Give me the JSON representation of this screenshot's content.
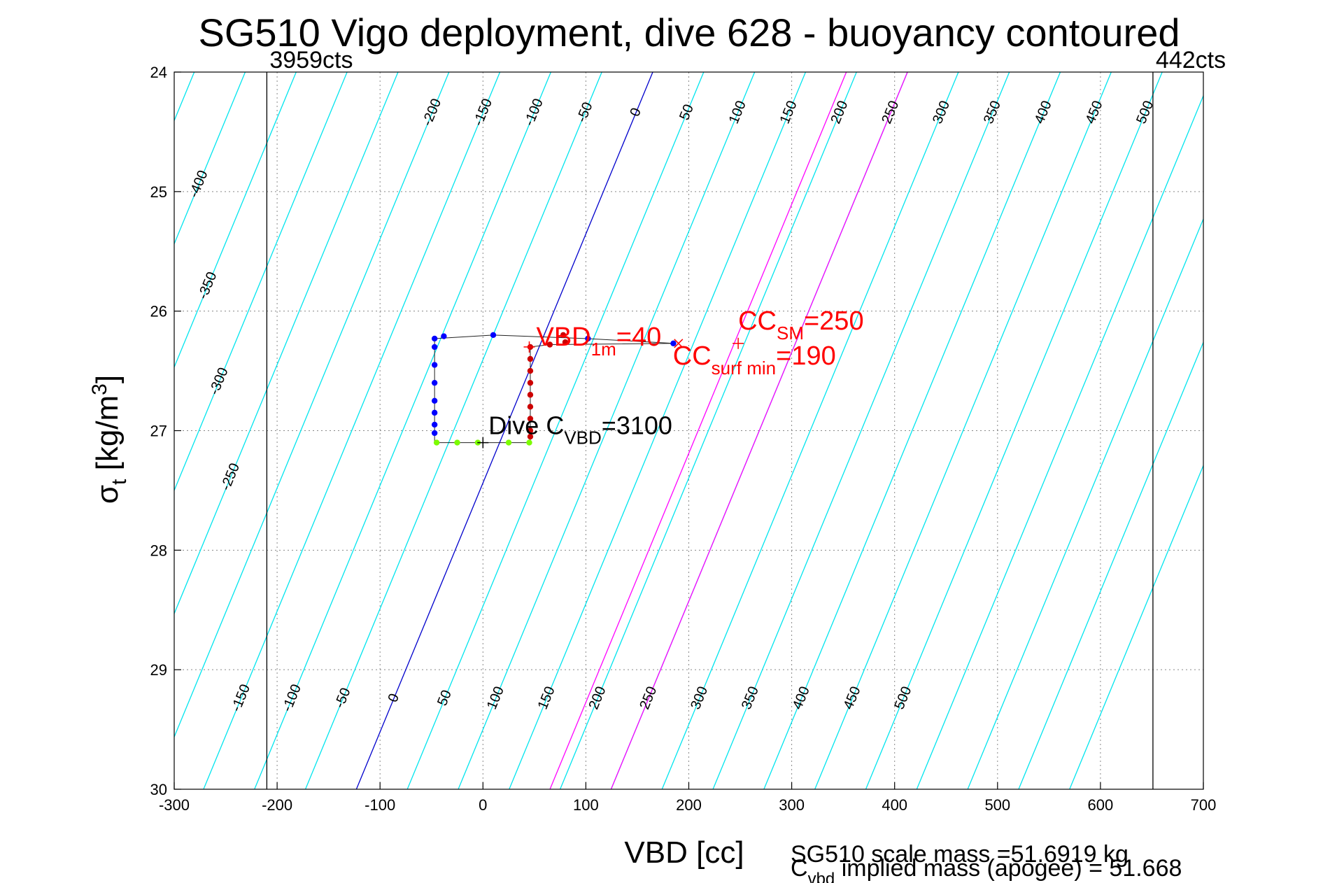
{
  "chart_data": {
    "type": "scatter",
    "title": "SG510 Vigo deployment, dive 628 - buoyancy contoured",
    "xlabel": "VBD [cc]",
    "ylabel": "σt [kg/m3]",
    "ylabel_parts": {
      "sigma": "σ",
      "sub": "t",
      "unit_open": " [kg/m",
      "sup": "3",
      "unit_close": "]"
    },
    "xlim": [
      -300,
      700
    ],
    "ylim": [
      24,
      30
    ],
    "y_reversed": true,
    "grid": true,
    "xticks": [
      -300,
      -200,
      -100,
      0,
      100,
      200,
      300,
      400,
      500,
      600,
      700
    ],
    "yticks": [
      24,
      25,
      26,
      27,
      28,
      29,
      30
    ],
    "vertical_limits": [
      {
        "x": -210,
        "label": "3959cts"
      },
      {
        "x": 651,
        "label": "442cts"
      }
    ],
    "contours": {
      "values": [
        -400,
        -350,
        -300,
        -250,
        -200,
        -150,
        -100,
        -50,
        0,
        50,
        100,
        150,
        200,
        250,
        300,
        350,
        400,
        450,
        500
      ],
      "colors": {
        "default": "#00e5ee",
        "zero": "#0000cc",
        "highlight": "#ff00ff"
      },
      "highlight_values": [
        190,
        250
      ],
      "slope_cc_per_sigma": 48,
      "ref_sigma": 24,
      "ref_x_zero": 165,
      "spacing_cc": 49.5,
      "top_labels": [
        -400,
        -350,
        -300,
        -250,
        -200,
        -150,
        -100,
        -50,
        0,
        50,
        100,
        150,
        200,
        250,
        300,
        350,
        400,
        450,
        500
      ],
      "bottom_labels": [
        -150,
        -100,
        -50,
        0,
        50,
        100,
        150,
        200,
        250,
        300,
        350,
        400,
        450,
        500
      ]
    },
    "series": [
      {
        "color": "#0000ff",
        "points": [
          [
            -47,
            26.23
          ],
          [
            -38,
            26.21
          ],
          [
            10,
            26.2
          ],
          [
            -47,
            26.3
          ],
          [
            -47,
            26.45
          ],
          [
            -47,
            26.6
          ],
          [
            -47,
            26.75
          ],
          [
            -47,
            26.85
          ],
          [
            -47,
            26.95
          ],
          [
            -47,
            27.02
          ],
          [
            102,
            26.23
          ],
          [
            185,
            26.27
          ]
        ]
      },
      {
        "color": "#7cfc00",
        "points": [
          [
            -45,
            27.1
          ],
          [
            -25,
            27.1
          ],
          [
            -5,
            27.1
          ],
          [
            25,
            27.1
          ],
          [
            45,
            27.1
          ]
        ]
      },
      {
        "color": "#cc0000",
        "points": [
          [
            46,
            26.3
          ],
          [
            46,
            26.4
          ],
          [
            46,
            26.5
          ],
          [
            46,
            26.6
          ],
          [
            46,
            26.7
          ],
          [
            46,
            26.8
          ],
          [
            46,
            26.9
          ],
          [
            46,
            27.0
          ],
          [
            46,
            27.05
          ],
          [
            65,
            26.28
          ],
          [
            78,
            26.2
          ],
          [
            80,
            26.26
          ]
        ]
      }
    ],
    "annotations": [
      {
        "parts": [
          "VBD",
          "1m",
          "=40"
        ],
        "color": "#ff0000",
        "x": 45,
        "y": 26.3,
        "marker": "+"
      },
      {
        "parts": [
          "CC",
          "SM",
          "=250"
        ],
        "color": "#ff0000",
        "x": 248,
        "y": 26.27,
        "marker": "+"
      },
      {
        "parts": [
          "CC",
          "surf min",
          "=190"
        ],
        "color": "#ff0000",
        "x": 190,
        "y": 26.27,
        "marker": "x"
      },
      {
        "parts": [
          "Dive C",
          "VBD",
          "=3100"
        ],
        "color": "#000000",
        "x": 0,
        "y": 27.1,
        "marker": "+"
      }
    ],
    "footer": {
      "scale_mass": "SG510 scale mass =51.6919 kg",
      "implied_mass_parts": [
        "C",
        "vbd",
        " implied mass (apogee) = 51.668"
      ]
    }
  }
}
